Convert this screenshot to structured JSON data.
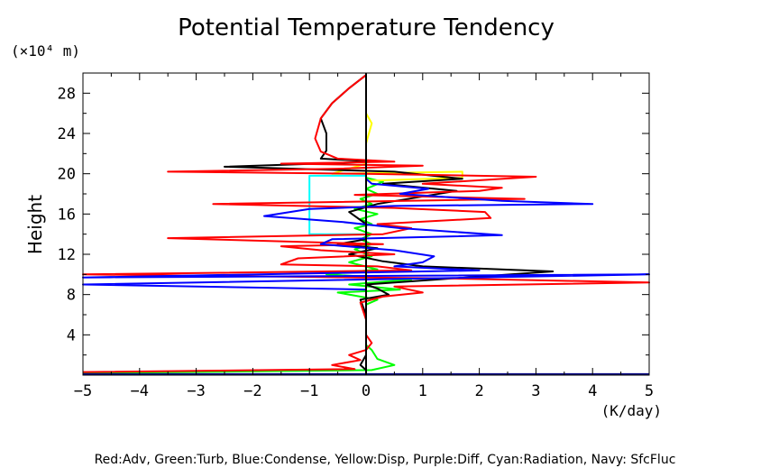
{
  "chart_data": {
    "type": "line",
    "title": "Potential Temperature Tendency",
    "ylabel": "Height",
    "yunit": "(×10⁴ m)",
    "xunit": "(K/day)",
    "xlim": [
      -5,
      5
    ],
    "ylim": [
      0,
      30
    ],
    "xticks": [
      -5,
      -4,
      -3,
      -2,
      -1,
      0,
      1,
      2,
      3,
      4,
      5
    ],
    "xtick_labels": [
      "−5",
      "−4",
      "−3",
      "−2",
      "−1",
      "0",
      "1",
      "2",
      "3",
      "4",
      "5"
    ],
    "yticks": [
      4,
      8,
      12,
      16,
      20,
      24,
      28
    ],
    "ytick_labels": [
      "4",
      "8",
      "12",
      "16",
      "20",
      "24",
      "28"
    ],
    "grid": false,
    "caption": "Red:Adv, Green:Turb, Blue:Condense, Yellow:Disp, Purple:Diff, Cyan:Radiation, Navy: SfcFluc",
    "series": [
      {
        "name": "Green:Turb",
        "color": "#00ff00",
        "points": [
          [
            -5,
            0.2
          ],
          [
            0.1,
            0.5
          ],
          [
            0.5,
            1.0
          ],
          [
            0.2,
            1.6
          ],
          [
            0.1,
            2.5
          ],
          [
            0,
            3.0
          ],
          [
            0,
            5
          ],
          [
            0,
            7
          ],
          [
            0.2,
            7.5
          ],
          [
            -0.5,
            8.2
          ],
          [
            0.6,
            8.5
          ],
          [
            -0.3,
            9.0
          ],
          [
            0.8,
            9.5
          ],
          [
            -0.7,
            10.0
          ],
          [
            0.2,
            10.5
          ],
          [
            -0.3,
            11.2
          ],
          [
            0.1,
            11.8
          ],
          [
            -0.2,
            12.5
          ],
          [
            0.1,
            13.0
          ],
          [
            -0.1,
            13.5
          ],
          [
            0.1,
            14.0
          ],
          [
            -0.2,
            14.6
          ],
          [
            0.1,
            15.0
          ],
          [
            -0.1,
            15.5
          ],
          [
            0.2,
            16.0
          ],
          [
            -0.2,
            16.5
          ],
          [
            0.1,
            17.0
          ],
          [
            -0.1,
            17.5
          ],
          [
            0.2,
            18.0
          ],
          [
            0,
            18.5
          ],
          [
            0.3,
            19.2
          ],
          [
            0,
            19.6
          ],
          [
            0,
            25
          ]
        ]
      },
      {
        "name": "Yellow:Disp",
        "color": "#ffff00",
        "points": [
          [
            0,
            19.3
          ],
          [
            1.7,
            19.6
          ],
          [
            1.7,
            20.2
          ],
          [
            -0.6,
            20.0
          ],
          [
            0,
            21
          ],
          [
            0,
            23
          ],
          [
            0.1,
            25
          ],
          [
            0,
            26
          ]
        ]
      },
      {
        "name": "Cyan:Radiation",
        "color": "#00ffff",
        "points": [
          [
            0,
            14.0
          ],
          [
            -1.0,
            14.0
          ],
          [
            -1.0,
            19.8
          ],
          [
            0,
            19.8
          ]
        ]
      },
      {
        "name": "Navy: SfcFluc",
        "color": "#000080",
        "points": [
          [
            -5,
            0.1
          ],
          [
            5,
            0.1
          ]
        ]
      },
      {
        "name": "Black",
        "color": "#000000",
        "points": [
          [
            0,
            0.5
          ],
          [
            -0.1,
            1
          ],
          [
            0,
            2
          ],
          [
            0,
            4
          ],
          [
            0,
            6
          ],
          [
            -0.1,
            7.5
          ],
          [
            0.4,
            8.0
          ],
          [
            0.2,
            8.6
          ],
          [
            0,
            9.0
          ],
          [
            3.3,
            10.3
          ],
          [
            1.0,
            10.8
          ],
          [
            0.3,
            11.3
          ],
          [
            -0.3,
            12.0
          ],
          [
            0.2,
            12.6
          ],
          [
            -0.5,
            13.0
          ],
          [
            0,
            13.5
          ],
          [
            0,
            15
          ],
          [
            -0.3,
            16.2
          ],
          [
            0.2,
            17.0
          ],
          [
            1.6,
            18.3
          ],
          [
            0.3,
            19.0
          ],
          [
            1.7,
            19.5
          ],
          [
            0.5,
            20.2
          ],
          [
            -2.5,
            20.7
          ],
          [
            0.2,
            21.2
          ],
          [
            -0.8,
            21.5
          ],
          [
            -0.7,
            22.3
          ],
          [
            -0.7,
            24
          ],
          [
            -0.8,
            25.5
          ],
          [
            -0.6,
            27
          ],
          [
            -0.3,
            28.5
          ],
          [
            0,
            29.8
          ]
        ]
      },
      {
        "name": "Red:Adv",
        "color": "#ff0000",
        "points": [
          [
            -5,
            0.3
          ],
          [
            -0.2,
            0.6
          ],
          [
            -0.6,
            1.0
          ],
          [
            -0.1,
            1.5
          ],
          [
            -0.3,
            2.0
          ],
          [
            0,
            2.5
          ],
          [
            0.1,
            3.2
          ],
          [
            0,
            4
          ],
          [
            0,
            5.5
          ],
          [
            -0.1,
            7.2
          ],
          [
            0.3,
            7.8
          ],
          [
            1.0,
            8.2
          ],
          [
            0.5,
            8.8
          ],
          [
            5,
            9.2
          ],
          [
            1.5,
            9.6
          ],
          [
            -5,
            10.0
          ],
          [
            0.8,
            10.4
          ],
          [
            0.2,
            10.8
          ],
          [
            -1.5,
            11.0
          ],
          [
            -1.2,
            11.6
          ],
          [
            0.5,
            12.0
          ],
          [
            -0.8,
            12.4
          ],
          [
            -1.5,
            12.8
          ],
          [
            0.3,
            13.0
          ],
          [
            -3.5,
            13.6
          ],
          [
            0.3,
            14.0
          ],
          [
            0.8,
            14.6
          ],
          [
            0.2,
            15.0
          ],
          [
            2.2,
            15.6
          ],
          [
            2.1,
            16.2
          ],
          [
            0.5,
            16.6
          ],
          [
            -2.7,
            17.0
          ],
          [
            2.8,
            17.5
          ],
          [
            -0.2,
            17.9
          ],
          [
            2.0,
            18.3
          ],
          [
            2.4,
            18.6
          ],
          [
            1.0,
            19.0
          ],
          [
            3.0,
            19.7
          ],
          [
            0,
            20.0
          ],
          [
            -3.5,
            20.2
          ],
          [
            -0.5,
            20.5
          ],
          [
            1.0,
            20.8
          ],
          [
            -1.5,
            21.0
          ],
          [
            0.5,
            21.2
          ],
          [
            -0.5,
            21.5
          ],
          [
            -0.8,
            22.2
          ],
          [
            -0.9,
            23.5
          ],
          [
            -0.8,
            25.5
          ],
          [
            -0.6,
            27
          ],
          [
            -0.3,
            28.5
          ],
          [
            0,
            29.8
          ]
        ]
      },
      {
        "name": "Blue:Condense",
        "color": "#0000ff",
        "points": [
          [
            0,
            8.5
          ],
          [
            -5,
            9.0
          ],
          [
            5,
            10.0
          ],
          [
            -5,
            9.7
          ],
          [
            2.0,
            10.4
          ],
          [
            0.5,
            10.8
          ],
          [
            1.0,
            11.2
          ],
          [
            1.2,
            11.8
          ],
          [
            0.5,
            12.4
          ],
          [
            -0.8,
            13.0
          ],
          [
            -0.6,
            13.5
          ],
          [
            2.4,
            13.9
          ],
          [
            0.6,
            14.6
          ],
          [
            -0.4,
            15.2
          ],
          [
            -1.8,
            15.8
          ],
          [
            -1.0,
            16.5
          ],
          [
            0.5,
            16.8
          ],
          [
            4.0,
            17.0
          ],
          [
            2.4,
            17.3
          ],
          [
            0.6,
            18.0
          ],
          [
            1.1,
            18.5
          ],
          [
            0.1,
            19.0
          ],
          [
            0,
            19.5
          ],
          [
            0,
            20.0
          ]
        ]
      }
    ]
  }
}
